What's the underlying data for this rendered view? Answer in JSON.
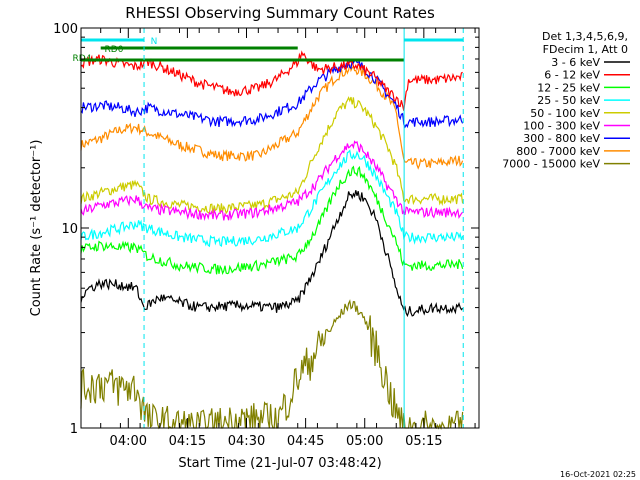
{
  "chart_data": {
    "type": "line",
    "title": "RHESSI Observing Summary Count Rates",
    "xlabel": "Start Time (21-Jul-07 03:48:42)",
    "ylabel": "Count Rate (s⁻¹ detector⁻¹)",
    "ylim": [
      1,
      100
    ],
    "yscale": "log",
    "y_tick_labels": [
      "1",
      "10",
      "100"
    ],
    "x_range_minutes_after_0348": [
      0,
      101
    ],
    "x_ticks": [
      {
        "minute": 12,
        "label": "04:00"
      },
      {
        "minute": 27,
        "label": "04:15"
      },
      {
        "minute": 42,
        "label": "04:30"
      },
      {
        "minute": 57,
        "label": "04:45"
      },
      {
        "minute": 72,
        "label": "05:00"
      },
      {
        "minute": 87,
        "label": "05:15"
      }
    ],
    "grid": false,
    "legend_position": "right",
    "legend_header": [
      "Det 1,3,4,5,6,9,",
      "FDecim 1, Att 0"
    ],
    "footer_date": "16-Oct-2021 02:25",
    "flags": [
      {
        "label": "",
        "color": "#00e5ee",
        "segments": [
          [
            0,
            16
          ],
          [
            82,
            97
          ]
        ]
      },
      {
        "label": "N",
        "color": "#00e5ee",
        "segments": []
      },
      {
        "label": "RD0",
        "color": "#008000",
        "segments": [
          [
            5,
            55
          ]
        ]
      },
      {
        "label": "RD4",
        "color": "#008000",
        "segments": [
          [
            0,
            82
          ]
        ]
      }
    ],
    "series": [
      {
        "name": "3 - 6 keV",
        "color": "#000000",
        "values": [
          [
            0,
            4.5
          ],
          [
            2,
            5.0
          ],
          [
            5,
            5.3
          ],
          [
            10,
            5.2
          ],
          [
            14,
            5.0
          ],
          [
            16,
            4.0
          ],
          [
            20,
            4.5
          ],
          [
            30,
            4.0
          ],
          [
            40,
            4.1
          ],
          [
            50,
            4.0
          ],
          [
            55,
            4.3
          ],
          [
            60,
            6.5
          ],
          [
            65,
            11.0
          ],
          [
            68,
            14.5
          ],
          [
            70,
            15.0
          ],
          [
            72,
            14.0
          ],
          [
            75,
            11.0
          ],
          [
            78,
            7.0
          ],
          [
            80,
            5.0
          ],
          [
            82,
            3.8
          ],
          [
            90,
            4.0
          ],
          [
            97,
            4.0
          ]
        ]
      },
      {
        "name": "6 - 12 keV",
        "color": "#ff0000",
        "values": [
          [
            0,
            67
          ],
          [
            5,
            70
          ],
          [
            10,
            66
          ],
          [
            14,
            64
          ],
          [
            17,
            68
          ],
          [
            22,
            62
          ],
          [
            30,
            53
          ],
          [
            38,
            48
          ],
          [
            45,
            50
          ],
          [
            50,
            56
          ],
          [
            55,
            68
          ],
          [
            56,
            75
          ],
          [
            60,
            62
          ],
          [
            65,
            64
          ],
          [
            68,
            65
          ],
          [
            70,
            65
          ],
          [
            74,
            58
          ],
          [
            78,
            48
          ],
          [
            80,
            45
          ],
          [
            82,
            40
          ],
          [
            83,
            55
          ],
          [
            90,
            55
          ],
          [
            97,
            57
          ]
        ]
      },
      {
        "name": "12 - 25 keV",
        "color": "#00ff00",
        "values": [
          [
            0,
            7.8
          ],
          [
            5,
            8.2
          ],
          [
            10,
            8.0
          ],
          [
            14,
            8.0
          ],
          [
            17,
            7.2
          ],
          [
            25,
            6.5
          ],
          [
            35,
            6.2
          ],
          [
            45,
            6.5
          ],
          [
            55,
            7.2
          ],
          [
            60,
            10.0
          ],
          [
            65,
            16.0
          ],
          [
            68,
            19.0
          ],
          [
            70,
            19.5
          ],
          [
            72,
            18.0
          ],
          [
            75,
            14.0
          ],
          [
            78,
            10.5
          ],
          [
            80,
            8.5
          ],
          [
            82,
            6.5
          ],
          [
            90,
            6.5
          ],
          [
            97,
            6.6
          ]
        ]
      },
      {
        "name": "25 - 50 keV",
        "color": "#00ffff",
        "values": [
          [
            0,
            9.0
          ],
          [
            5,
            9.5
          ],
          [
            10,
            10.0
          ],
          [
            14,
            10.5
          ],
          [
            17,
            10.0
          ],
          [
            25,
            9.0
          ],
          [
            35,
            8.5
          ],
          [
            45,
            8.8
          ],
          [
            55,
            10.0
          ],
          [
            60,
            14.0
          ],
          [
            65,
            20.0
          ],
          [
            68,
            23.0
          ],
          [
            70,
            23.5
          ],
          [
            72,
            22.0
          ],
          [
            75,
            18.0
          ],
          [
            78,
            14.0
          ],
          [
            80,
            12.0
          ],
          [
            82,
            9.0
          ],
          [
            90,
            9.0
          ],
          [
            97,
            9.0
          ]
        ]
      },
      {
        "name": "50 - 100 keV",
        "color": "#cccc00",
        "values": [
          [
            0,
            14.0
          ],
          [
            5,
            15.0
          ],
          [
            10,
            16.0
          ],
          [
            14,
            16.5
          ],
          [
            17,
            14.0
          ],
          [
            25,
            13.0
          ],
          [
            35,
            12.5
          ],
          [
            45,
            13.0
          ],
          [
            55,
            15.0
          ],
          [
            60,
            25.0
          ],
          [
            65,
            38.0
          ],
          [
            68,
            43.0
          ],
          [
            70,
            42.0
          ],
          [
            72,
            39.0
          ],
          [
            75,
            32.0
          ],
          [
            78,
            25.0
          ],
          [
            80,
            20.0
          ],
          [
            82,
            14.0
          ],
          [
            90,
            14.0
          ],
          [
            97,
            14.0
          ]
        ]
      },
      {
        "name": "100 - 300 keV",
        "color": "#ff00ff",
        "values": [
          [
            0,
            12.0
          ],
          [
            5,
            13.0
          ],
          [
            10,
            13.5
          ],
          [
            14,
            14.0
          ],
          [
            17,
            12.5
          ],
          [
            25,
            12.0
          ],
          [
            35,
            11.5
          ],
          [
            45,
            12.0
          ],
          [
            55,
            13.5
          ],
          [
            60,
            17.0
          ],
          [
            65,
            23.0
          ],
          [
            68,
            26.0
          ],
          [
            70,
            26.0
          ],
          [
            72,
            24.0
          ],
          [
            75,
            20.0
          ],
          [
            78,
            16.0
          ],
          [
            80,
            14.0
          ],
          [
            82,
            12.0
          ],
          [
            90,
            12.0
          ],
          [
            97,
            12.0
          ]
        ]
      },
      {
        "name": "300 - 800 keV",
        "color": "#0000ff",
        "values": [
          [
            0,
            40
          ],
          [
            5,
            41
          ],
          [
            10,
            40
          ],
          [
            14,
            38
          ],
          [
            17,
            40
          ],
          [
            25,
            37
          ],
          [
            35,
            34
          ],
          [
            45,
            35
          ],
          [
            55,
            42
          ],
          [
            60,
            54
          ],
          [
            65,
            63
          ],
          [
            68,
            67
          ],
          [
            70,
            66
          ],
          [
            72,
            63
          ],
          [
            75,
            55
          ],
          [
            78,
            46
          ],
          [
            80,
            41
          ],
          [
            82,
            34
          ],
          [
            90,
            34
          ],
          [
            97,
            35
          ]
        ]
      },
      {
        "name": "800 - 7000 keV",
        "color": "#ff8c00",
        "values": [
          [
            0,
            26
          ],
          [
            5,
            28
          ],
          [
            10,
            31
          ],
          [
            14,
            32
          ],
          [
            17,
            30
          ],
          [
            25,
            26
          ],
          [
            35,
            23
          ],
          [
            45,
            23
          ],
          [
            55,
            30
          ],
          [
            60,
            45
          ],
          [
            65,
            58
          ],
          [
            68,
            62
          ],
          [
            70,
            62
          ],
          [
            72,
            59
          ],
          [
            75,
            52
          ],
          [
            78,
            44
          ],
          [
            80,
            38
          ],
          [
            82,
            21
          ],
          [
            90,
            21
          ],
          [
            97,
            22
          ]
        ]
      },
      {
        "name": "7000 - 15000 keV",
        "color": "#808000",
        "values": [
          [
            0,
            1.6
          ],
          [
            5,
            1.7
          ],
          [
            10,
            1.6
          ],
          [
            14,
            1.6
          ],
          [
            17,
            1.1
          ],
          [
            30,
            1.0
          ],
          [
            40,
            1.1
          ],
          [
            50,
            1.1
          ],
          [
            55,
            1.8
          ],
          [
            60,
            2.5
          ],
          [
            65,
            3.5
          ],
          [
            68,
            4.2
          ],
          [
            70,
            4.0
          ],
          [
            72,
            3.5
          ],
          [
            75,
            2.5
          ],
          [
            78,
            1.6
          ],
          [
            80,
            1.2
          ],
          [
            82,
            1.0
          ],
          [
            97,
            1.0
          ]
        ]
      }
    ]
  }
}
